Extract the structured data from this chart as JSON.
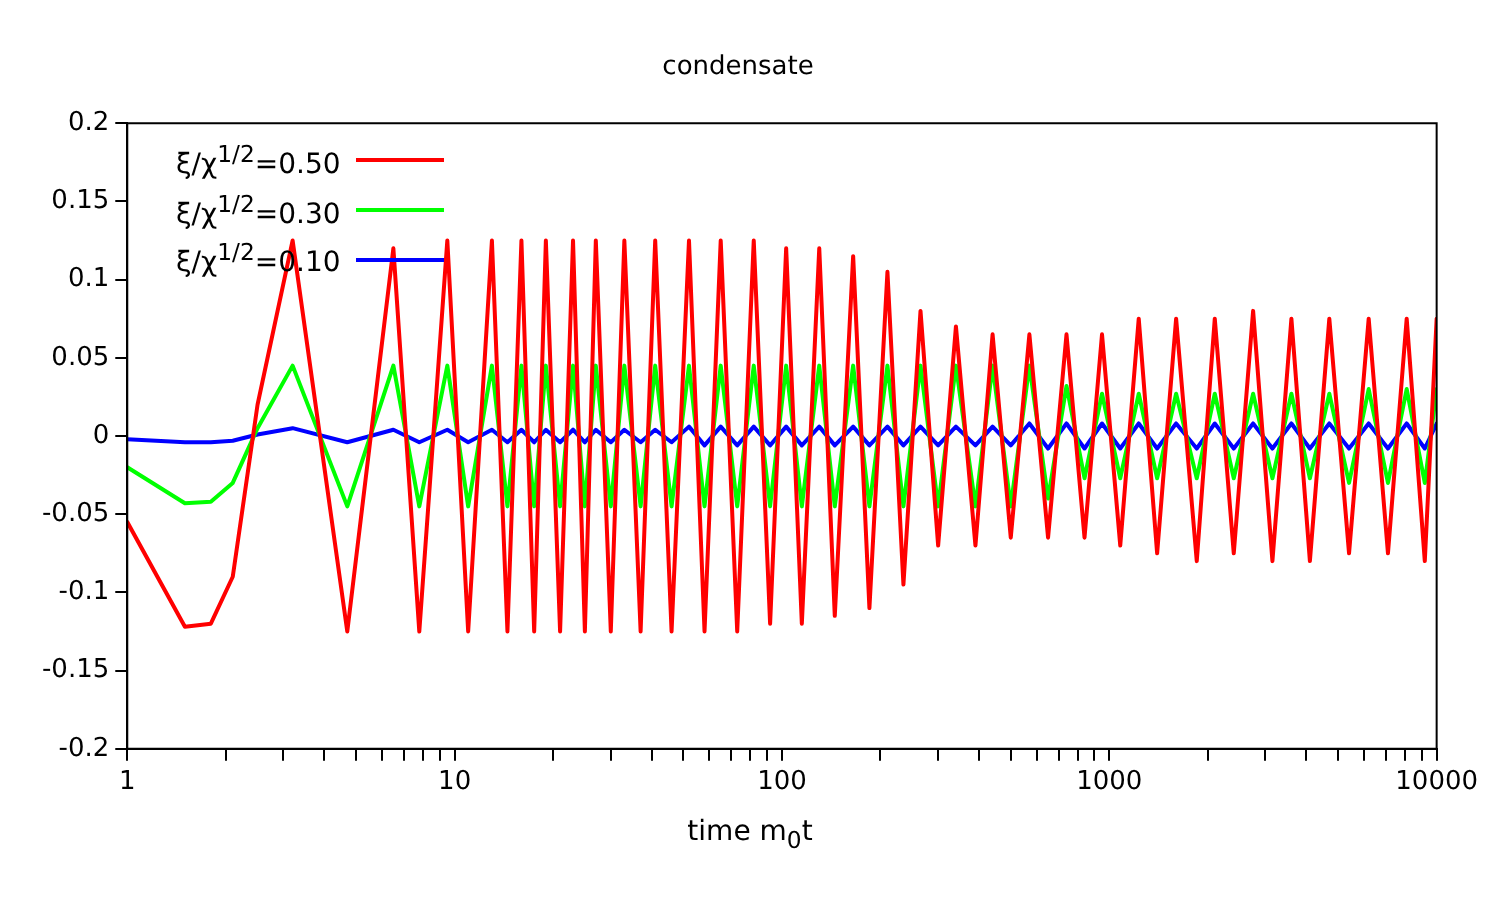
{
  "chart_data": {
    "type": "line",
    "title": "condensate",
    "xlabel": "time m$_{0}$t",
    "x": [
      1,
      1.5,
      1.8,
      2.1,
      2.5,
      3.2,
      4.7,
      6.5,
      7.8,
      9.5,
      11,
      13,
      14.5,
      16,
      17.5,
      19,
      21,
      23,
      25,
      27,
      30,
      33,
      37,
      41,
      46,
      52,
      58,
      65,
      73,
      82,
      92,
      103,
      115,
      130,
      145,
      165,
      185,
      210,
      235,
      265,
      300,
      340,
      390,
      440,
      500,
      570,
      650,
      740,
      840,
      950,
      1080,
      1230,
      1400,
      1600,
      1850,
      2100,
      2400,
      2750,
      3150,
      3600,
      4100,
      4700,
      5400,
      6200,
      7100,
      8100,
      9200,
      10000
    ],
    "series": [
      {
        "name": "ξ/χ$^{1/2}$=0.50",
        "color": "#ff0000",
        "values": [
          -0.055,
          -0.122,
          -0.12,
          -0.09,
          0.02,
          0.125,
          -0.125,
          0.12,
          -0.125,
          0.125,
          -0.125,
          0.125,
          -0.125,
          0.125,
          -0.125,
          0.125,
          -0.125,
          0.125,
          -0.125,
          0.125,
          -0.125,
          0.125,
          -0.125,
          0.125,
          -0.125,
          0.125,
          -0.125,
          0.125,
          -0.125,
          0.125,
          -0.12,
          0.12,
          -0.12,
          0.12,
          -0.115,
          0.115,
          -0.11,
          0.105,
          -0.095,
          0.08,
          -0.07,
          0.07,
          -0.07,
          0.065,
          -0.065,
          0.065,
          -0.065,
          0.065,
          -0.065,
          0.065,
          -0.07,
          0.075,
          -0.075,
          0.075,
          -0.08,
          0.075,
          -0.075,
          0.08,
          -0.08,
          0.075,
          -0.08,
          0.075,
          -0.075,
          0.075,
          -0.075,
          0.075,
          -0.08,
          0.075
        ]
      },
      {
        "name": "ξ/χ$^{1/2}$=0.30",
        "color": "#00ff00",
        "values": [
          -0.02,
          -0.043,
          -0.042,
          -0.03,
          0.005,
          0.045,
          -0.045,
          0.045,
          -0.045,
          0.045,
          -0.045,
          0.045,
          -0.045,
          0.045,
          -0.045,
          0.045,
          -0.045,
          0.045,
          -0.045,
          0.045,
          -0.045,
          0.045,
          -0.045,
          0.045,
          -0.045,
          0.045,
          -0.045,
          0.045,
          -0.045,
          0.045,
          -0.045,
          0.045,
          -0.045,
          0.045,
          -0.045,
          0.045,
          -0.045,
          0.045,
          -0.045,
          0.045,
          -0.045,
          0.045,
          -0.045,
          0.045,
          -0.045,
          0.045,
          -0.04,
          0.032,
          -0.027,
          0.027,
          -0.027,
          0.027,
          -0.027,
          0.027,
          -0.027,
          0.027,
          -0.027,
          0.027,
          -0.027,
          0.027,
          -0.027,
          0.027,
          -0.03,
          0.03,
          -0.03,
          0.03,
          -0.03,
          0.03
        ]
      },
      {
        "name": "ξ/χ$^{1/2}$=0.10",
        "color": "#0000ff",
        "values": [
          -0.002,
          -0.004,
          -0.004,
          -0.003,
          0.001,
          0.005,
          -0.004,
          0.004,
          -0.004,
          0.004,
          -0.004,
          0.004,
          -0.004,
          0.004,
          -0.004,
          0.004,
          -0.004,
          0.004,
          -0.004,
          0.004,
          -0.004,
          0.004,
          -0.004,
          0.004,
          -0.004,
          0.006,
          -0.006,
          0.006,
          -0.006,
          0.006,
          -0.006,
          0.006,
          -0.006,
          0.006,
          -0.006,
          0.006,
          -0.006,
          0.006,
          -0.006,
          0.006,
          -0.006,
          0.006,
          -0.006,
          0.006,
          -0.006,
          0.008,
          -0.008,
          0.008,
          -0.008,
          0.008,
          -0.008,
          0.008,
          -0.008,
          0.008,
          -0.008,
          0.008,
          -0.008,
          0.008,
          -0.008,
          0.008,
          -0.008,
          0.008,
          -0.008,
          0.008,
          -0.008,
          0.008,
          -0.008,
          0.008
        ]
      }
    ],
    "xlim": [
      1,
      10000
    ],
    "ylim": [
      -0.2,
      0.2
    ],
    "xticks": [
      1,
      {
        "value": 2,
        "label": null
      },
      {
        "value": 3,
        "label": null
      },
      {
        "value": 4,
        "label": null
      },
      {
        "value": 5,
        "label": null
      },
      {
        "value": 6,
        "label": null
      },
      {
        "value": 7,
        "label": null
      },
      {
        "value": 8,
        "label": null
      },
      {
        "value": 9,
        "label": null
      },
      10,
      {
        "value": 20,
        "label": null
      },
      {
        "value": 30,
        "label": null
      },
      {
        "value": 40,
        "label": null
      },
      {
        "value": 50,
        "label": null
      },
      {
        "value": 60,
        "label": null
      },
      {
        "value": 70,
        "label": null
      },
      {
        "value": 80,
        "label": null
      },
      {
        "value": 90,
        "label": null
      },
      100,
      {
        "value": 200,
        "label": null
      },
      {
        "value": 300,
        "label": null
      },
      {
        "value": 400,
        "label": null
      },
      {
        "value": 500,
        "label": null
      },
      {
        "value": 600,
        "label": null
      },
      {
        "value": 700,
        "label": null
      },
      {
        "value": 800,
        "label": null
      },
      {
        "value": 900,
        "label": null
      },
      1000,
      {
        "value": 2000,
        "label": null
      },
      {
        "value": 3000,
        "label": null
      },
      {
        "value": 4000,
        "label": null
      },
      {
        "value": 5000,
        "label": null
      },
      {
        "value": 6000,
        "label": null
      },
      {
        "value": 7000,
        "label": null
      },
      {
        "value": 8000,
        "label": null
      },
      {
        "value": 9000,
        "label": null
      },
      10000
    ],
    "yticks": [
      -0.2,
      -0.15,
      -0.1,
      -0.05,
      0,
      0.05,
      0.1,
      0.15,
      0.2
    ],
    "log": "x",
    "legend": "top left",
    "marker": "none",
    "line_style": "solid"
  }
}
